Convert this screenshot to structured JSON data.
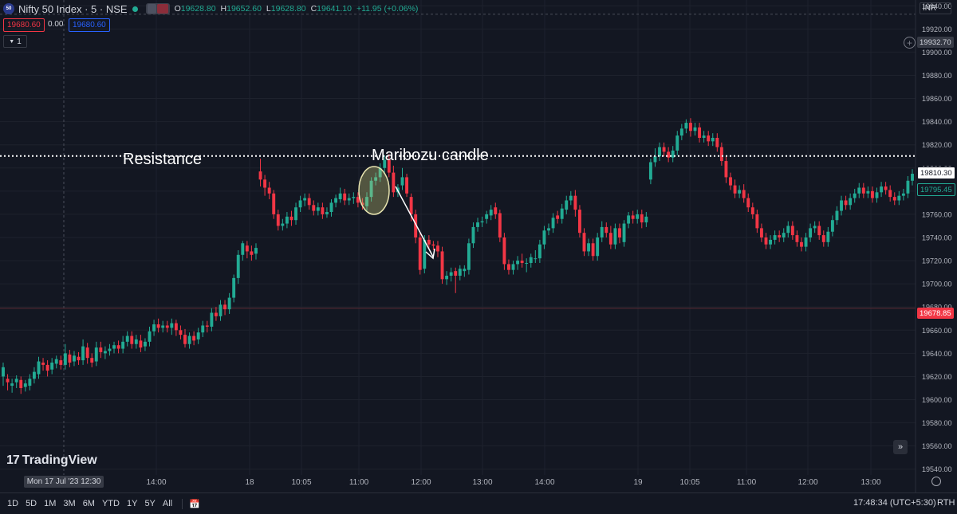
{
  "header": {
    "symbol_title": "Nifty 50 Index · 5 · NSE",
    "symbol_icon_text": "50",
    "ohlc": {
      "o_label": "O",
      "o": "19628.80",
      "h_label": "H",
      "h": "19652.60",
      "l_label": "L",
      "l": "19628.80",
      "c_label": "C",
      "c": "19641.10",
      "change": "+11.95 (+0.06%)"
    },
    "sell_price": "19680.60",
    "spread": "0.00",
    "buy_price": "19680.60",
    "collapse_count": "1",
    "currency": "INR"
  },
  "colors": {
    "background": "#131722",
    "up": "#22ab94",
    "down": "#f23645",
    "grid": "#1e222d",
    "text": "#d1d4dc",
    "axis_text": "#b2b5be"
  },
  "price_axis": {
    "ticks": [
      "19940.00",
      "19920.00",
      "19900.00",
      "19880.00",
      "19860.00",
      "19840.00",
      "19820.00",
      "19800.00",
      "19780.00",
      "19760.00",
      "19740.00",
      "19720.00",
      "19700.00",
      "19680.00",
      "19660.00",
      "19640.00",
      "19620.00",
      "19600.00",
      "19580.00",
      "19560.00",
      "19540.00"
    ],
    "crosshair_price": "19932.70",
    "resistance_price": "19810.30",
    "last_price": "19795.45",
    "red_price": "19678.85"
  },
  "time_axis": {
    "labels": [
      "14:00",
      "18",
      "10:05",
      "11:00",
      "12:00",
      "13:00",
      "14:00",
      "19",
      "10:05",
      "11:00",
      "12:00",
      "13:00"
    ],
    "crosshair_label": "Mon 17 Jul '23   12:30"
  },
  "annotations": {
    "resistance": "Resistance",
    "maribozu": "Maribozu candle"
  },
  "logo": "TradingView",
  "bottom_bar": {
    "ranges": [
      "1D",
      "5D",
      "1M",
      "3M",
      "6M",
      "YTD",
      "1Y",
      "5Y",
      "All"
    ],
    "time": "17:48:34 (UTC+5:30)",
    "session": "RTH"
  },
  "chart_data": {
    "type": "candlestick",
    "title": "Nifty 50 Index · 5 · NSE",
    "interval": "5 min",
    "ylim": [
      19535,
      19945
    ],
    "resistance_level": 19810.3,
    "sessions": [
      "17 Jul 2023",
      "18 Jul 2023",
      "19 Jul 2023"
    ],
    "candles": [
      [
        19620,
        19628,
        19612,
        19632
      ],
      [
        19618,
        19615,
        19608,
        19622
      ],
      [
        19612,
        19614,
        19606,
        19618
      ],
      [
        19615,
        19618,
        19610,
        19621
      ],
      [
        19617,
        19610,
        19605,
        19620
      ],
      [
        19611,
        19614,
        19607,
        19617
      ],
      [
        19612,
        19618,
        19608,
        19622
      ],
      [
        19618,
        19624,
        19614,
        19628
      ],
      [
        19622,
        19633,
        19618,
        19637
      ],
      [
        19632,
        19630,
        19625,
        19636
      ],
      [
        19630,
        19625,
        19620,
        19634
      ],
      [
        19626,
        19632,
        19622,
        19636
      ],
      [
        19631,
        19635,
        19627,
        19638
      ],
      [
        19634,
        19630,
        19626,
        19638
      ],
      [
        19630,
        19640,
        19626,
        19648
      ],
      [
        19639,
        19632,
        19628,
        19643
      ],
      [
        19633,
        19638,
        19629,
        19642
      ],
      [
        19637,
        19634,
        19630,
        19641
      ],
      [
        19634,
        19646,
        19630,
        19652
      ],
      [
        19645,
        19636,
        19631,
        19649
      ],
      [
        19636,
        19632,
        19628,
        19640
      ],
      [
        19633,
        19645,
        19629,
        19650
      ],
      [
        19645,
        19641,
        19636,
        19650
      ],
      [
        19640,
        19642,
        19635,
        19646
      ],
      [
        19642,
        19644,
        19638,
        19648
      ],
      [
        19644,
        19647,
        19640,
        19650
      ],
      [
        19647,
        19644,
        19640,
        19651
      ],
      [
        19644,
        19650,
        19640,
        19655
      ],
      [
        19650,
        19655,
        19646,
        19659
      ],
      [
        19655,
        19648,
        19644,
        19659
      ],
      [
        19648,
        19652,
        19644,
        19656
      ],
      [
        19651,
        19645,
        19641,
        19656
      ],
      [
        19646,
        19650,
        19642,
        19653
      ],
      [
        19650,
        19659,
        19646,
        19663
      ],
      [
        19659,
        19665,
        19655,
        19669
      ],
      [
        19665,
        19662,
        19658,
        19670
      ],
      [
        19662,
        19664,
        19658,
        19668
      ],
      [
        19664,
        19662,
        19658,
        19668
      ],
      [
        19662,
        19666,
        19656,
        19670
      ],
      [
        19666,
        19660,
        19655,
        19669
      ],
      [
        19660,
        19656,
        19652,
        19664
      ],
      [
        19656,
        19648,
        19645,
        19661
      ],
      [
        19648,
        19655,
        19644,
        19658
      ],
      [
        19655,
        19651,
        19647,
        19659
      ],
      [
        19652,
        19658,
        19648,
        19662
      ],
      [
        19658,
        19664,
        19654,
        19668
      ],
      [
        19664,
        19663,
        19658,
        19668
      ],
      [
        19663,
        19675,
        19659,
        19679
      ],
      [
        19675,
        19672,
        19668,
        19680
      ],
      [
        19672,
        19682,
        19668,
        19686
      ],
      [
        19682,
        19678,
        19673,
        19686
      ],
      [
        19678,
        19688,
        19674,
        19692
      ],
      [
        19688,
        19705,
        19684,
        19708
      ],
      [
        19705,
        19725,
        19700,
        19729
      ],
      [
        19725,
        19735,
        19720,
        19737
      ],
      [
        19733,
        19728,
        19722,
        19737
      ],
      [
        19728,
        19725,
        19720,
        19733
      ],
      [
        19726,
        19731,
        19721,
        19735
      ],
      [
        19797,
        19790,
        19784,
        19808
      ],
      [
        19790,
        19783,
        19776,
        19794
      ],
      [
        19783,
        19778,
        19773,
        19788
      ],
      [
        19778,
        19760,
        19756,
        19781
      ],
      [
        19760,
        19750,
        19746,
        19764
      ],
      [
        19750,
        19752,
        19746,
        19756
      ],
      [
        19752,
        19758,
        19748,
        19762
      ],
      [
        19758,
        19755,
        19750,
        19763
      ],
      [
        19755,
        19766,
        19751,
        19770
      ],
      [
        19766,
        19772,
        19762,
        19776
      ],
      [
        19772,
        19774,
        19767,
        19778
      ],
      [
        19774,
        19768,
        19764,
        19778
      ],
      [
        19768,
        19763,
        19759,
        19772
      ],
      [
        19763,
        19766,
        19759,
        19770
      ],
      [
        19766,
        19760,
        19756,
        19770
      ],
      [
        19760,
        19762,
        19757,
        19766
      ],
      [
        19762,
        19770,
        19758,
        19773
      ],
      [
        19770,
        19774,
        19766,
        19777
      ],
      [
        19773,
        19778,
        19770,
        19783
      ],
      [
        19778,
        19772,
        19768,
        19782
      ],
      [
        19772,
        19774,
        19768,
        19778
      ],
      [
        19774,
        19775,
        19769,
        19779
      ],
      [
        19775,
        19770,
        19766,
        19779
      ],
      [
        19770,
        19768,
        19764,
        19774
      ],
      [
        19767,
        19775,
        19763,
        19779
      ],
      [
        19775,
        19789,
        19771,
        19792
      ],
      [
        19789,
        19792,
        19785,
        19796
      ],
      [
        19792,
        19800,
        19788,
        19804
      ],
      [
        19800,
        19807,
        19796,
        19811
      ],
      [
        19807,
        19796,
        19792,
        19812
      ],
      [
        19796,
        19779,
        19775,
        19802
      ],
      [
        19779,
        19783,
        19775,
        19786
      ],
      [
        19785,
        19792,
        19781,
        19800
      ],
      [
        19792,
        19778,
        19775,
        19795
      ],
      [
        19775,
        19760,
        19754,
        19778
      ],
      [
        19760,
        19740,
        19735,
        19764
      ],
      [
        19740,
        19712,
        19708,
        19744
      ],
      [
        19713,
        19738,
        19709,
        19742
      ],
      [
        19738,
        19734,
        19730,
        19742
      ],
      [
        19734,
        19733,
        19729,
        19737
      ],
      [
        19733,
        19728,
        19723,
        19737
      ],
      [
        19728,
        19704,
        19700,
        19732
      ],
      [
        19704,
        19707,
        19699,
        19711
      ],
      [
        19707,
        19710,
        19702,
        19714
      ],
      [
        19711,
        19707,
        19692,
        19714
      ],
      [
        19707,
        19713,
        19703,
        19716
      ],
      [
        19711,
        19713,
        19706,
        19716
      ],
      [
        19712,
        19735,
        19708,
        19739
      ],
      [
        19735,
        19749,
        19731,
        19753
      ],
      [
        19749,
        19753,
        19745,
        19757
      ],
      [
        19753,
        19754,
        19749,
        19758
      ],
      [
        19756,
        19760,
        19752,
        19763
      ],
      [
        19759,
        19764,
        19755,
        19768
      ],
      [
        19766,
        19760,
        19756,
        19770
      ],
      [
        19761,
        19740,
        19736,
        19764
      ],
      [
        19740,
        19717,
        19712,
        19744
      ],
      [
        19717,
        19712,
        19708,
        19721
      ],
      [
        19712,
        19717,
        19708,
        19720
      ],
      [
        19717,
        19720,
        19712,
        19724
      ],
      [
        19720,
        19718,
        19714,
        19726
      ],
      [
        19718,
        19718,
        19710,
        19722
      ],
      [
        19718,
        19723,
        19714,
        19726
      ],
      [
        19722,
        19722,
        19718,
        19729
      ],
      [
        19722,
        19734,
        19718,
        19738
      ],
      [
        19734,
        19746,
        19730,
        19750
      ],
      [
        19746,
        19748,
        19742,
        19752
      ],
      [
        19748,
        19757,
        19744,
        19761
      ],
      [
        19759,
        19756,
        19752,
        19763
      ],
      [
        19756,
        19765,
        19752,
        19769
      ],
      [
        19764,
        19772,
        19760,
        19776
      ],
      [
        19772,
        19776,
        19768,
        19780
      ],
      [
        19776,
        19764,
        19758,
        19781
      ],
      [
        19764,
        19744,
        19740,
        19768
      ],
      [
        19744,
        19728,
        19724,
        19748
      ],
      [
        19728,
        19735,
        19724,
        19739
      ],
      [
        19735,
        19724,
        19720,
        19739
      ],
      [
        19724,
        19740,
        19720,
        19744
      ],
      [
        19740,
        19749,
        19736,
        19754
      ],
      [
        19749,
        19744,
        19740,
        19753
      ],
      [
        19744,
        19734,
        19730,
        19750
      ],
      [
        19734,
        19748,
        19730,
        19752
      ],
      [
        19748,
        19740,
        19735,
        19752
      ],
      [
        19736,
        19752,
        19732,
        19755
      ],
      [
        19752,
        19759,
        19748,
        19762
      ],
      [
        19759,
        19756,
        19752,
        19763
      ],
      [
        19756,
        19760,
        19752,
        19764
      ],
      [
        19760,
        19753,
        19748,
        19764
      ],
      [
        19753,
        19758,
        19749,
        19762
      ],
      [
        19790,
        19805,
        19786,
        19808
      ],
      [
        19805,
        19810,
        19801,
        19817
      ],
      [
        19810,
        19818,
        19806,
        19822
      ],
      [
        19818,
        19814,
        19810,
        19822
      ],
      [
        19814,
        19809,
        19805,
        19818
      ],
      [
        19809,
        19815,
        19805,
        19819
      ],
      [
        19815,
        19828,
        19811,
        19832
      ],
      [
        19828,
        19834,
        19824,
        19838
      ],
      [
        19834,
        19839,
        19830,
        19842
      ],
      [
        19839,
        19832,
        19827,
        19843
      ],
      [
        19832,
        19835,
        19828,
        19839
      ],
      [
        19835,
        19826,
        19822,
        19839
      ],
      [
        19826,
        19828,
        19822,
        19832
      ],
      [
        19828,
        19823,
        19819,
        19832
      ],
      [
        19823,
        19826,
        19819,
        19830
      ],
      [
        19826,
        19818,
        19814,
        19830
      ],
      [
        19818,
        19806,
        19802,
        19822
      ],
      [
        19806,
        19792,
        19787,
        19810
      ],
      [
        19792,
        19785,
        19781,
        19796
      ],
      [
        19785,
        19778,
        19774,
        19790
      ],
      [
        19778,
        19781,
        19774,
        19785
      ],
      [
        19781,
        19774,
        19770,
        19786
      ],
      [
        19774,
        19766,
        19762,
        19778
      ],
      [
        19766,
        19760,
        19756,
        19770
      ],
      [
        19760,
        19748,
        19744,
        19764
      ],
      [
        19748,
        19740,
        19736,
        19752
      ],
      [
        19740,
        19734,
        19730,
        19744
      ],
      [
        19734,
        19738,
        19730,
        19742
      ],
      [
        19738,
        19742,
        19734,
        19746
      ],
      [
        19742,
        19740,
        19736,
        19746
      ],
      [
        19740,
        19744,
        19736,
        19748
      ],
      [
        19744,
        19750,
        19740,
        19754
      ],
      [
        19750,
        19742,
        19738,
        19754
      ],
      [
        19742,
        19736,
        19732,
        19746
      ],
      [
        19736,
        19732,
        19728,
        19740
      ],
      [
        19732,
        19740,
        19728,
        19744
      ],
      [
        19740,
        19748,
        19736,
        19752
      ],
      [
        19748,
        19750,
        19744,
        19754
      ],
      [
        19750,
        19742,
        19738,
        19754
      ],
      [
        19742,
        19736,
        19732,
        19746
      ],
      [
        19736,
        19745,
        19732,
        19749
      ],
      [
        19745,
        19755,
        19741,
        19759
      ],
      [
        19755,
        19763,
        19751,
        19767
      ],
      [
        19763,
        19772,
        19759,
        19776
      ],
      [
        19772,
        19768,
        19764,
        19776
      ],
      [
        19768,
        19774,
        19764,
        19778
      ],
      [
        19774,
        19778,
        19770,
        19782
      ],
      [
        19778,
        19783,
        19774,
        19787
      ],
      [
        19783,
        19778,
        19774,
        19787
      ],
      [
        19778,
        19780,
        19774,
        19784
      ],
      [
        19780,
        19774,
        19770,
        19784
      ],
      [
        19774,
        19779,
        19770,
        19783
      ],
      [
        19779,
        19784,
        19775,
        19788
      ],
      [
        19784,
        19781,
        19777,
        19788
      ],
      [
        19781,
        19775,
        19771,
        19785
      ],
      [
        19775,
        19772,
        19768,
        19779
      ],
      [
        19772,
        19776,
        19768,
        19780
      ],
      [
        19776,
        19778,
        19772,
        19782
      ],
      [
        19778,
        19789,
        19774,
        19793
      ],
      [
        19789,
        19795,
        19785,
        19799
      ]
    ]
  }
}
